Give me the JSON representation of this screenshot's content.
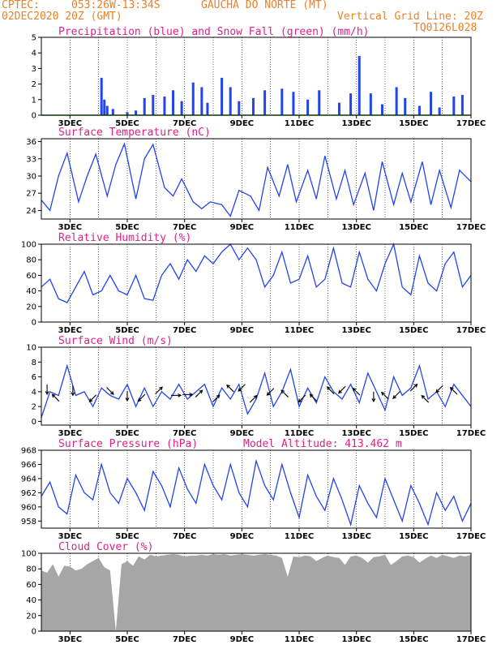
{
  "header": {
    "org": "CPTEC:",
    "coords": "053:26W-13:34S",
    "station": "GAUCHA DO NORTE (MT)",
    "run": "02DEC2020 20Z (GMT)",
    "grid_note": "Vertical Grid Line: 20Z",
    "code": "TQ0126L028"
  },
  "x_axis": {
    "start_day": 2,
    "end_day": 17,
    "ticks": [
      "3DEC",
      "5DEC",
      "7DEC",
      "9DEC",
      "11DEC",
      "13DEC",
      "15DEC",
      "17DEC"
    ]
  },
  "chart_data": [
    {
      "type": "bar",
      "title": "Precipitation (blue) and Snow Fall (green) (mm/h)",
      "ylim": [
        0,
        5
      ],
      "yticks": [
        "0",
        "1",
        "2",
        "3",
        "4",
        "5"
      ],
      "grid": "vertical-dashed",
      "series": [
        {
          "name": "Precipitation",
          "color": "#2244ee",
          "x": [
            4.1,
            4.2,
            4.3,
            4.5,
            5.0,
            5.3,
            5.6,
            5.9,
            6.3,
            6.6,
            6.9,
            7.3,
            7.6,
            7.8,
            8.3,
            8.6,
            8.9,
            9.4,
            9.8,
            10.4,
            10.8,
            11.3,
            11.7,
            12.4,
            12.8,
            13.1,
            13.5,
            13.9,
            14.4,
            14.7,
            15.2,
            15.6,
            15.9,
            16.4,
            16.7
          ],
          "values": [
            2.4,
            1.0,
            0.6,
            0.4,
            0.2,
            0.3,
            1.1,
            1.3,
            1.2,
            1.6,
            0.9,
            2.1,
            1.8,
            0.8,
            2.4,
            1.8,
            0.9,
            1.1,
            1.6,
            1.7,
            1.5,
            1.0,
            1.6,
            0.8,
            1.4,
            3.8,
            1.4,
            0.7,
            1.8,
            1.1,
            0.6,
            1.5,
            0.5,
            1.2,
            1.3
          ]
        },
        {
          "name": "Snow Fall",
          "color": "#1a9a1a",
          "x": [
            2.0,
            17.0
          ],
          "values": [
            0,
            0
          ]
        }
      ]
    },
    {
      "type": "line",
      "title": "Surface Temperature (nC)",
      "ylim": [
        22.5,
        36.5
      ],
      "yticks": [
        "24",
        "27",
        "30",
        "33",
        "36"
      ],
      "series": [
        {
          "name": "",
          "color": "#2244ee",
          "x": [
            2.0,
            2.3,
            2.6,
            2.9,
            3.3,
            3.6,
            3.9,
            4.3,
            4.6,
            4.9,
            5.3,
            5.6,
            5.9,
            6.3,
            6.6,
            6.9,
            7.3,
            7.6,
            7.9,
            8.3,
            8.6,
            8.9,
            9.3,
            9.6,
            9.9,
            10.3,
            10.6,
            10.9,
            11.3,
            11.6,
            11.9,
            12.3,
            12.6,
            12.9,
            13.3,
            13.6,
            13.9,
            14.3,
            14.6,
            14.9,
            15.3,
            15.6,
            15.9,
            16.3,
            16.6,
            17.0
          ],
          "values": [
            25.8,
            24.0,
            30.0,
            34.0,
            25.5,
            30.0,
            33.8,
            26.5,
            32.0,
            35.6,
            26.0,
            33.0,
            35.5,
            28.0,
            26.5,
            29.5,
            25.5,
            24.3,
            25.5,
            25.0,
            23.0,
            27.5,
            26.5,
            24.0,
            31.5,
            26.5,
            32.0,
            25.5,
            31.0,
            26.0,
            33.5,
            26.0,
            31.0,
            25.0,
            30.5,
            24.0,
            32.5,
            25.0,
            30.5,
            25.5,
            32.5,
            25.0,
            31.0,
            24.5,
            31.0,
            29.0
          ]
        }
      ]
    },
    {
      "type": "line",
      "title": "Relative Humidity (%)",
      "ylim": [
        0,
        100
      ],
      "yticks": [
        "0",
        "20",
        "40",
        "60",
        "80",
        "100"
      ],
      "series": [
        {
          "name": "",
          "color": "#2244ee",
          "x": [
            2.0,
            2.3,
            2.6,
            2.9,
            3.2,
            3.5,
            3.8,
            4.1,
            4.4,
            4.7,
            5.0,
            5.3,
            5.6,
            5.9,
            6.2,
            6.5,
            6.8,
            7.1,
            7.4,
            7.7,
            8.0,
            8.3,
            8.6,
            8.9,
            9.2,
            9.5,
            9.8,
            10.1,
            10.4,
            10.7,
            11.0,
            11.3,
            11.6,
            11.9,
            12.2,
            12.5,
            12.8,
            13.1,
            13.4,
            13.7,
            14.0,
            14.3,
            14.6,
            14.9,
            15.2,
            15.5,
            15.8,
            16.1,
            16.4,
            16.7,
            17.0
          ],
          "values": [
            45,
            55,
            30,
            25,
            45,
            65,
            35,
            40,
            60,
            40,
            35,
            60,
            30,
            28,
            60,
            75,
            55,
            80,
            65,
            85,
            75,
            90,
            100,
            80,
            95,
            80,
            45,
            60,
            90,
            50,
            55,
            85,
            45,
            55,
            95,
            50,
            45,
            90,
            55,
            40,
            75,
            100,
            45,
            35,
            85,
            50,
            40,
            75,
            90,
            45,
            60
          ]
        }
      ]
    },
    {
      "type": "line",
      "title": "Surface Wind (m/s)",
      "ylim": [
        -0.5,
        10
      ],
      "yticks": [
        "0",
        "2",
        "4",
        "6",
        "8",
        "10"
      ],
      "series": [
        {
          "name": "",
          "color": "#2244ee",
          "x": [
            2.0,
            2.3,
            2.6,
            2.9,
            3.2,
            3.5,
            3.8,
            4.1,
            4.4,
            4.7,
            5.0,
            5.3,
            5.6,
            5.9,
            6.2,
            6.5,
            6.8,
            7.1,
            7.4,
            7.7,
            8.0,
            8.3,
            8.6,
            8.9,
            9.2,
            9.5,
            9.8,
            10.1,
            10.4,
            10.7,
            11.0,
            11.3,
            11.6,
            11.9,
            12.2,
            12.5,
            12.8,
            13.1,
            13.4,
            13.7,
            14.0,
            14.3,
            14.6,
            14.9,
            15.2,
            15.5,
            15.8,
            16.1,
            16.4,
            16.7,
            17.0
          ],
          "values": [
            0.5,
            4.0,
            3.5,
            7.5,
            3.5,
            4.0,
            2.0,
            4.5,
            3.5,
            3.0,
            5.0,
            2.0,
            4.5,
            2.0,
            4.0,
            3.0,
            5.0,
            3.0,
            4.0,
            5.0,
            2.0,
            4.5,
            3.0,
            5.0,
            1.0,
            3.0,
            6.5,
            2.0,
            4.0,
            7.0,
            2.0,
            4.5,
            2.5,
            6.0,
            4.0,
            3.0,
            5.0,
            2.5,
            6.5,
            4.0,
            1.5,
            6.0,
            3.5,
            4.5,
            7.5,
            3.0,
            4.0,
            2.0,
            5.0,
            3.5,
            2.0
          ]
        }
      ],
      "arrows": [
        {
          "x": 2.2,
          "dir": "S"
        },
        {
          "x": 2.5,
          "dir": "NW"
        },
        {
          "x": 3.1,
          "dir": "S"
        },
        {
          "x": 3.8,
          "dir": "SW"
        },
        {
          "x": 4.4,
          "dir": "SE"
        },
        {
          "x": 5.0,
          "dir": "S"
        },
        {
          "x": 5.5,
          "dir": "SW"
        },
        {
          "x": 6.1,
          "dir": "NE"
        },
        {
          "x": 6.7,
          "dir": "E"
        },
        {
          "x": 7.1,
          "dir": "E"
        },
        {
          "x": 7.5,
          "dir": "NE"
        },
        {
          "x": 8.1,
          "dir": "NE"
        },
        {
          "x": 8.6,
          "dir": "NW"
        },
        {
          "x": 9.0,
          "dir": "SW"
        },
        {
          "x": 9.4,
          "dir": "NE"
        },
        {
          "x": 10.0,
          "dir": "SW"
        },
        {
          "x": 10.5,
          "dir": "NW"
        },
        {
          "x": 11.1,
          "dir": "SW"
        },
        {
          "x": 11.5,
          "dir": "NW"
        },
        {
          "x": 12.1,
          "dir": "NW"
        },
        {
          "x": 12.5,
          "dir": "SW"
        },
        {
          "x": 13.0,
          "dir": "NW"
        },
        {
          "x": 13.6,
          "dir": "S"
        },
        {
          "x": 14.0,
          "dir": "NW"
        },
        {
          "x": 14.4,
          "dir": "SW"
        },
        {
          "x": 15.0,
          "dir": "NE"
        },
        {
          "x": 15.4,
          "dir": "NW"
        },
        {
          "x": 15.9,
          "dir": "SW"
        },
        {
          "x": 16.4,
          "dir": "NW"
        }
      ]
    },
    {
      "type": "line",
      "title": "Surface Pressure (hPa)",
      "subtitle": "Model Altitude: 413.462 m",
      "ylim": [
        957,
        968
      ],
      "yticks": [
        "958",
        "960",
        "962",
        "964",
        "966",
        "968"
      ],
      "series": [
        {
          "name": "",
          "color": "#2244ee",
          "x": [
            2.0,
            2.3,
            2.6,
            2.9,
            3.2,
            3.5,
            3.8,
            4.1,
            4.4,
            4.7,
            5.0,
            5.3,
            5.6,
            5.9,
            6.2,
            6.5,
            6.8,
            7.1,
            7.4,
            7.7,
            8.0,
            8.3,
            8.6,
            8.9,
            9.2,
            9.5,
            9.8,
            10.1,
            10.4,
            10.7,
            11.0,
            11.3,
            11.6,
            11.9,
            12.2,
            12.5,
            12.8,
            13.1,
            13.4,
            13.7,
            14.0,
            14.3,
            14.6,
            14.9,
            15.2,
            15.5,
            15.8,
            16.1,
            16.4,
            16.7,
            17.0
          ],
          "values": [
            961.5,
            963.5,
            960.0,
            959.0,
            964.5,
            962.0,
            961.0,
            966.0,
            962.0,
            960.5,
            964.0,
            962.0,
            959.5,
            965.0,
            963.0,
            960.0,
            965.5,
            962.5,
            960.5,
            966.0,
            963.0,
            961.0,
            966.0,
            962.0,
            960.0,
            966.5,
            963.0,
            961.0,
            966.0,
            962.0,
            958.5,
            964.5,
            961.5,
            959.5,
            964.0,
            961.0,
            957.5,
            963.0,
            960.5,
            958.5,
            964.0,
            961.0,
            958.0,
            963.0,
            960.5,
            957.5,
            962.0,
            959.5,
            961.5,
            958.0,
            960.5
          ]
        }
      ]
    },
    {
      "type": "area",
      "title": "Cloud Cover (%)",
      "ylim": [
        0,
        100
      ],
      "yticks": [
        "0",
        "20",
        "40",
        "60",
        "80",
        "100"
      ],
      "series": [
        {
          "name": "",
          "color": "#a6a6a6",
          "x": [
            2.0,
            2.2,
            2.4,
            2.6,
            2.8,
            3.0,
            3.2,
            3.4,
            3.6,
            3.8,
            4.0,
            4.2,
            4.4,
            4.6,
            4.8,
            5.0,
            5.2,
            5.4,
            5.6,
            5.8,
            6.0,
            6.2,
            6.4,
            6.6,
            6.8,
            7.0,
            7.2,
            7.4,
            7.6,
            7.8,
            8.0,
            8.2,
            8.4,
            8.6,
            8.8,
            9.0,
            9.2,
            9.4,
            9.6,
            9.8,
            10.0,
            10.2,
            10.4,
            10.6,
            10.8,
            11.0,
            11.2,
            11.4,
            11.6,
            11.8,
            12.0,
            12.2,
            12.4,
            12.6,
            12.8,
            13.0,
            13.2,
            13.4,
            13.6,
            13.8,
            14.0,
            14.2,
            14.4,
            14.6,
            14.8,
            15.0,
            15.2,
            15.4,
            15.6,
            15.8,
            16.0,
            16.2,
            16.4,
            16.6,
            16.8,
            17.0
          ],
          "values": [
            78,
            75,
            86,
            70,
            84,
            83,
            78,
            80,
            86,
            90,
            94,
            82,
            78,
            0,
            86,
            90,
            84,
            96,
            92,
            98,
            96,
            97,
            98,
            99,
            98,
            96,
            97,
            97,
            98,
            97,
            99,
            98,
            99,
            97,
            98,
            99,
            98,
            97,
            98,
            99,
            98,
            97,
            94,
            70,
            96,
            95,
            97,
            96,
            90,
            94,
            97,
            95,
            94,
            85,
            96,
            97,
            94,
            88,
            95,
            96,
            98,
            85,
            90,
            96,
            97,
            95,
            88,
            93,
            97,
            94,
            98,
            96,
            94,
            97,
            96,
            98
          ]
        }
      ]
    }
  ]
}
